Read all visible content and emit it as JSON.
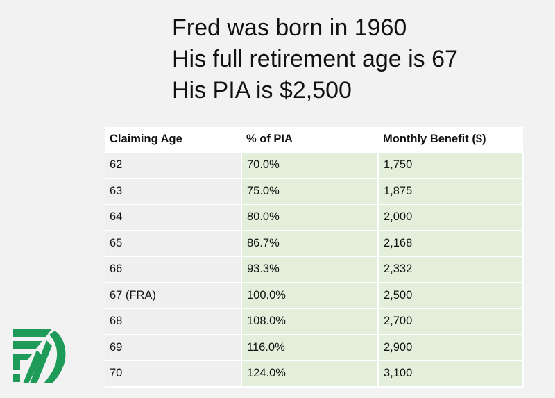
{
  "heading": {
    "line1": "Fred was born in 1960",
    "line2": "His full retirement age is 67",
    "line3": "His PIA is $2,500"
  },
  "table": {
    "headers": [
      "Claiming Age",
      "% of PIA",
      "Monthly Benefit ($)"
    ],
    "rows": [
      {
        "age": "62",
        "pct": "70.0%",
        "benefit": "1,750"
      },
      {
        "age": "63",
        "pct": "75.0%",
        "benefit": "1,875"
      },
      {
        "age": "64",
        "pct": "80.0%",
        "benefit": "2,000"
      },
      {
        "age": "65",
        "pct": "86.7%",
        "benefit": "2,168"
      },
      {
        "age": "66",
        "pct": "93.3%",
        "benefit": "2,332"
      },
      {
        "age": "67 (FRA)",
        "pct": "100.0%",
        "benefit": "2,500"
      },
      {
        "age": "68",
        "pct": "108.0%",
        "benefit": "2,700"
      },
      {
        "age": "69",
        "pct": "116.0%",
        "benefit": "2,900"
      },
      {
        "age": "70",
        "pct": "124.0%",
        "benefit": "3,100"
      }
    ]
  },
  "colors": {
    "background": "#f2f2f2",
    "age_cell": "#efefef",
    "value_cell": "#e3efdb",
    "logo_green": "#1e9b59"
  },
  "logo": {
    "icon": "green-arrow-logo-icon"
  }
}
